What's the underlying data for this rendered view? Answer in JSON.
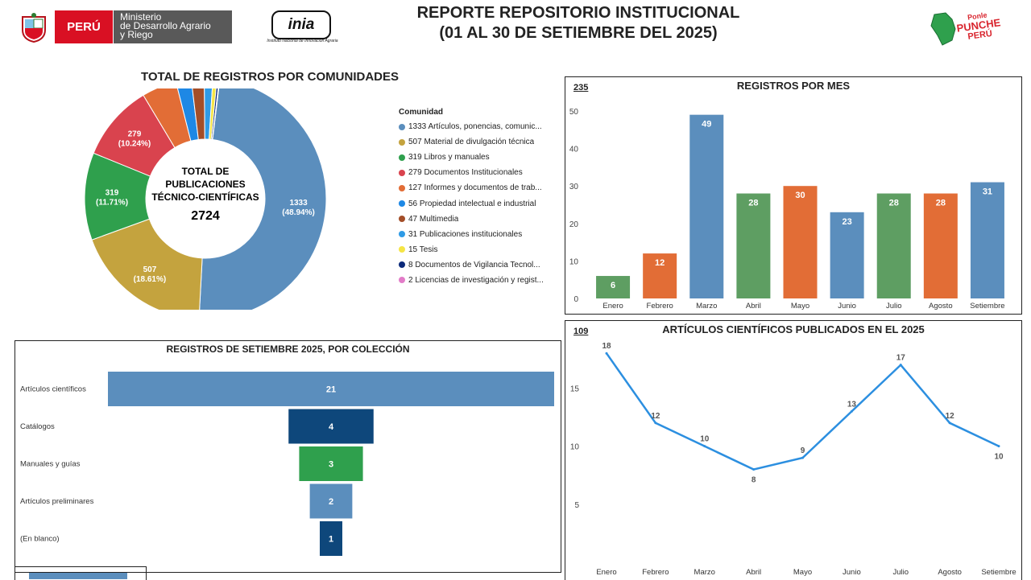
{
  "header": {
    "title_line1": "REPORTE REPOSITORIO INSTITUCIONAL",
    "title_line2": "(01 AL 30 DE SETIEMBRE DEL 2025)",
    "peru_label": "PERÚ",
    "ministry_line1": "Ministerio",
    "ministry_line2": "de Desarrollo Agrario",
    "ministry_line3": "y Riego",
    "inia_logo_text": "inia",
    "inia_subtitle": "Instituto Nacional de Innovación Agraria",
    "punche_line1": "Ponle",
    "punche_line2": "PUNCHE",
    "punche_line3": "PERÚ"
  },
  "colors": {
    "blue": "#5b8ebd",
    "olive": "#c4a33e",
    "green": "#2fa04d",
    "red": "#d9434e",
    "orange": "#e26d36",
    "lightblue": "#1e88e5",
    "brown": "#a34e28",
    "yellow": "#f5e545",
    "navy": "#0c2a7a",
    "pink": "#e27cc8",
    "darkblue": "#0e477b",
    "line": "#2c8fe0"
  },
  "chart_data": [
    {
      "type": "pie",
      "title": "TOTAL DE REGISTROS POR COMUNIDADES",
      "center_label": "TOTAL DE PUBLICACIONES TÉCNICO-CIENTÍFICAS",
      "center_line1": "TOTAL DE",
      "center_line2": "PUBLICACIONES",
      "center_line3": "TÉCNICO-CIENTÍFICAS",
      "total": "2724",
      "legend_title": "Comunidad",
      "legend_position": "right",
      "slices": [
        {
          "label": "1333 Artículos, ponencias, comunic...",
          "value": 1333,
          "data_label": "1333",
          "pct_label": "(48.94%)",
          "color": "#5b8ebd"
        },
        {
          "label": "507 Material de divulgación técnica",
          "value": 507,
          "data_label": "507",
          "pct_label": "(18.61%)",
          "color": "#c4a33e"
        },
        {
          "label": "319 Libros y manuales",
          "value": 319,
          "data_label": "319",
          "pct_label": "(11.71%)",
          "color": "#2fa04d"
        },
        {
          "label": "279 Documentos Institucionales",
          "value": 279,
          "data_label": "279",
          "pct_label": "(10.24%)",
          "color": "#d9434e"
        },
        {
          "label": "127 Informes y documentos de trab...",
          "value": 127,
          "color": "#e26d36"
        },
        {
          "label": "56 Propiedad intelectual e industrial",
          "value": 56,
          "color": "#1e88e5"
        },
        {
          "label": "47 Multimedia",
          "value": 47,
          "color": "#a34e28"
        },
        {
          "label": "31 Publicaciones institucionales",
          "value": 31,
          "color": "#2f9be6"
        },
        {
          "label": "15 Tesis",
          "value": 15,
          "color": "#f5e545"
        },
        {
          "label": "8 Documentos de Vigilancia Tecnol...",
          "value": 8,
          "color": "#0c2a7a"
        },
        {
          "label": "2 Licencias de investigación y regist...",
          "value": 2,
          "color": "#e27cc8"
        }
      ]
    },
    {
      "type": "bar",
      "title": "REGISTROS POR MES",
      "note": "235",
      "categories": [
        "Enero",
        "Febrero",
        "Marzo",
        "Abril",
        "Mayo",
        "Junio",
        "Julio",
        "Agosto",
        "Setiembre"
      ],
      "values": [
        6,
        12,
        49,
        28,
        30,
        23,
        28,
        28,
        31
      ],
      "colors": [
        "#5e9e62",
        "#e26d36",
        "#5b8ebd",
        "#5e9e62",
        "#e26d36",
        "#5b8ebd",
        "#5e9e62",
        "#e26d36",
        "#5b8ebd"
      ],
      "yticks": [
        "0",
        "10",
        "20",
        "30",
        "40",
        "50"
      ],
      "ylim": [
        0,
        50
      ],
      "grid": false
    },
    {
      "type": "bar",
      "orientation": "horizontal-funnel",
      "title": "REGISTROS DE SETIEMBRE 2025, POR COLECCIÓN",
      "categories": [
        "Artículos científicos",
        "Catálogos",
        "Manuales y guías",
        "Artículos preliminares",
        "(En blanco)"
      ],
      "values": [
        21,
        4,
        3,
        2,
        1
      ],
      "colors": [
        "#5b8ebd",
        "#0e477b",
        "#2fa04d",
        "#5b8ebd",
        "#0e477b"
      ]
    },
    {
      "type": "line",
      "title": "ARTÍCULOS CIENTÍFICOS PUBLICADOS EN EL 2025",
      "note": "109",
      "x": [
        "Enero",
        "Febrero",
        "Marzo",
        "Abril",
        "Mayo",
        "Junio",
        "Julio",
        "Agosto",
        "Setiembre"
      ],
      "values": [
        18,
        12,
        10,
        8,
        9,
        13,
        17,
        12,
        10
      ],
      "yticks": [
        "5",
        "10",
        "15"
      ],
      "ylim": [
        0,
        18.5
      ],
      "grid": false
    }
  ]
}
